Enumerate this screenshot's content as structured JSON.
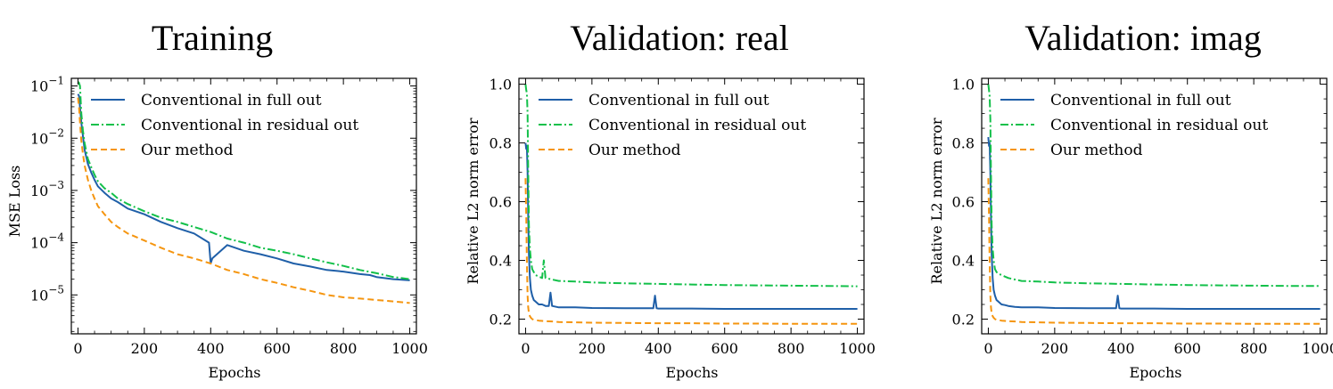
{
  "colors": {
    "full": "#1f5fa8",
    "residual": "#13c04a",
    "ours": "#f5950f"
  },
  "chart_data": [
    {
      "type": "line",
      "title": "Training",
      "xlabel": "Epochs",
      "ylabel": "MSE Loss",
      "yscale": "log",
      "xlim": [
        -20,
        1020
      ],
      "ylim": [
        1.8e-06,
        0.14
      ],
      "xticks": [
        0,
        200,
        400,
        600,
        800,
        1000
      ],
      "xtick_labels": [
        "0",
        "200",
        "400",
        "600",
        "800",
        "1000"
      ],
      "yticks": [
        0.1,
        0.01,
        0.001,
        0.0001,
        1e-05
      ],
      "ytick_labels": [
        {
          "base": "10",
          "exp": "−1"
        },
        {
          "base": "10",
          "exp": "−2"
        },
        {
          "base": "10",
          "exp": "−3"
        },
        {
          "base": "10",
          "exp": "−4"
        },
        {
          "base": "10",
          "exp": "−5"
        }
      ],
      "grid": false,
      "legend_position": "top-right",
      "series": [
        {
          "name": "Conventional in full out",
          "style": "solid",
          "x": [
            0,
            3,
            6,
            10,
            15,
            20,
            30,
            40,
            50,
            60,
            80,
            100,
            120,
            150,
            200,
            250,
            300,
            350,
            395,
            400,
            405,
            450,
            500,
            550,
            600,
            650,
            700,
            750,
            800,
            850,
            880,
            900,
            950,
            1000
          ],
          "y": [
            0.07,
            0.065,
            0.04,
            0.02,
            0.011,
            0.006,
            0.0032,
            0.0022,
            0.0016,
            0.0012,
            0.0009,
            0.0007,
            0.0006,
            0.00045,
            0.00035,
            0.00025,
            0.00019,
            0.00015,
            0.0001,
            4e-05,
            5e-05,
            9e-05,
            7e-05,
            6e-05,
            5e-05,
            4e-05,
            3.5e-05,
            3e-05,
            2.8e-05,
            2.5e-05,
            2.4e-05,
            2.2e-05,
            2e-05,
            1.9e-05
          ]
        },
        {
          "name": "Conventional in residual out",
          "style": "dashdot",
          "x": [
            0,
            3,
            6,
            10,
            15,
            20,
            30,
            40,
            50,
            60,
            80,
            100,
            120,
            150,
            200,
            250,
            300,
            350,
            400,
            450,
            500,
            550,
            600,
            650,
            700,
            750,
            800,
            850,
            900,
            950,
            1000
          ],
          "y": [
            0.12,
            0.115,
            0.1,
            0.03,
            0.014,
            0.008,
            0.004,
            0.0028,
            0.002,
            0.0015,
            0.0011,
            0.0009,
            0.0007,
            0.00055,
            0.0004,
            0.0003,
            0.00025,
            0.0002,
            0.00016,
            0.00012,
            0.0001,
            8e-05,
            7e-05,
            6e-05,
            5e-05,
            4.2e-05,
            3.6e-05,
            3e-05,
            2.6e-05,
            2.2e-05,
            2e-05
          ]
        },
        {
          "name": "Our method",
          "style": "dashed",
          "x": [
            0,
            3,
            6,
            10,
            15,
            20,
            30,
            40,
            50,
            60,
            80,
            100,
            120,
            150,
            200,
            250,
            300,
            350,
            400,
            450,
            500,
            550,
            600,
            650,
            700,
            750,
            800,
            850,
            900,
            950,
            1000
          ],
          "y": [
            0.06,
            0.04,
            0.02,
            0.009,
            0.005,
            0.003,
            0.0016,
            0.001,
            0.0007,
            0.0005,
            0.00035,
            0.00025,
            0.0002,
            0.00015,
            0.00011,
            8e-05,
            6e-05,
            5e-05,
            4e-05,
            3e-05,
            2.5e-05,
            2e-05,
            1.7e-05,
            1.4e-05,
            1.2e-05,
            1e-05,
            9e-06,
            8.5e-06,
            8e-06,
            7.5e-06,
            7e-06
          ]
        }
      ]
    },
    {
      "type": "line",
      "title": "Validation: real",
      "xlabel": "Epochs",
      "ylabel": "Relative L2 norm error",
      "yscale": "linear",
      "xlim": [
        -20,
        1020
      ],
      "ylim": [
        0.15,
        1.02
      ],
      "xticks": [
        0,
        200,
        400,
        600,
        800,
        1000
      ],
      "xtick_labels": [
        "0",
        "200",
        "400",
        "600",
        "800",
        "1000"
      ],
      "yticks": [
        0.2,
        0.4,
        0.6,
        0.8,
        1.0
      ],
      "ytick_labels": [
        "0.2",
        "0.4",
        "0.6",
        "0.8",
        "1.0"
      ],
      "grid": false,
      "legend_position": "top-right",
      "series": [
        {
          "name": "Conventional in full out",
          "style": "solid",
          "x": [
            0,
            2,
            4,
            6,
            8,
            10,
            13,
            16,
            20,
            25,
            30,
            40,
            50,
            60,
            70,
            75,
            80,
            100,
            150,
            200,
            300,
            385,
            390,
            395,
            400,
            500,
            600,
            700,
            800,
            900,
            1000
          ],
          "y": [
            0.8,
            0.78,
            0.79,
            0.7,
            0.55,
            0.42,
            0.34,
            0.3,
            0.28,
            0.265,
            0.26,
            0.25,
            0.25,
            0.245,
            0.245,
            0.29,
            0.245,
            0.24,
            0.24,
            0.238,
            0.237,
            0.237,
            0.28,
            0.237,
            0.236,
            0.236,
            0.235,
            0.235,
            0.235,
            0.235,
            0.235
          ]
        },
        {
          "name": "Conventional in residual out",
          "style": "dashdot",
          "x": [
            0,
            2,
            4,
            6,
            8,
            10,
            13,
            16,
            20,
            25,
            30,
            40,
            50,
            55,
            60,
            80,
            100,
            150,
            200,
            300,
            400,
            500,
            600,
            700,
            800,
            900,
            1000
          ],
          "y": [
            1.0,
            0.98,
            0.97,
            0.9,
            0.7,
            0.52,
            0.44,
            0.4,
            0.37,
            0.36,
            0.35,
            0.345,
            0.34,
            0.4,
            0.34,
            0.335,
            0.33,
            0.328,
            0.325,
            0.322,
            0.32,
            0.318,
            0.316,
            0.315,
            0.314,
            0.313,
            0.312
          ]
        },
        {
          "name": "Our method",
          "style": "dashed",
          "x": [
            0,
            2,
            4,
            6,
            8,
            10,
            13,
            16,
            20,
            25,
            30,
            40,
            50,
            60,
            80,
            100,
            150,
            200,
            300,
            400,
            500,
            600,
            700,
            800,
            900,
            1000
          ],
          "y": [
            0.68,
            0.55,
            0.4,
            0.28,
            0.24,
            0.22,
            0.21,
            0.205,
            0.2,
            0.198,
            0.197,
            0.195,
            0.194,
            0.193,
            0.192,
            0.19,
            0.189,
            0.188,
            0.187,
            0.186,
            0.186,
            0.185,
            0.185,
            0.184,
            0.184,
            0.184
          ]
        }
      ]
    },
    {
      "type": "line",
      "title": "Validation: imag",
      "xlabel": "Epochs",
      "ylabel": "Relative L2 norm error",
      "yscale": "linear",
      "xlim": [
        -20,
        1020
      ],
      "ylim": [
        0.15,
        1.02
      ],
      "xticks": [
        0,
        200,
        400,
        600,
        800,
        1000
      ],
      "xtick_labels": [
        "0",
        "200",
        "400",
        "600",
        "800",
        "1000"
      ],
      "yticks": [
        0.2,
        0.4,
        0.6,
        0.8,
        1.0
      ],
      "ytick_labels": [
        "0.2",
        "0.4",
        "0.6",
        "0.8",
        "1.0"
      ],
      "grid": false,
      "legend_position": "top-right",
      "series": [
        {
          "name": "Conventional in full out",
          "style": "solid",
          "x": [
            0,
            2,
            4,
            6,
            8,
            10,
            13,
            16,
            20,
            25,
            30,
            40,
            50,
            60,
            80,
            100,
            150,
            200,
            300,
            385,
            390,
            395,
            400,
            500,
            600,
            700,
            800,
            900,
            1000
          ],
          "y": [
            0.82,
            0.79,
            0.8,
            0.7,
            0.55,
            0.42,
            0.34,
            0.3,
            0.28,
            0.265,
            0.26,
            0.25,
            0.248,
            0.245,
            0.242,
            0.24,
            0.24,
            0.238,
            0.237,
            0.237,
            0.28,
            0.237,
            0.236,
            0.236,
            0.235,
            0.235,
            0.235,
            0.235,
            0.235
          ]
        },
        {
          "name": "Conventional in residual out",
          "style": "dashdot",
          "x": [
            0,
            2,
            4,
            6,
            8,
            10,
            13,
            16,
            20,
            25,
            30,
            40,
            50,
            60,
            80,
            100,
            150,
            200,
            300,
            400,
            500,
            600,
            700,
            800,
            900,
            1000
          ],
          "y": [
            1.0,
            0.98,
            0.96,
            0.88,
            0.7,
            0.52,
            0.44,
            0.4,
            0.37,
            0.36,
            0.355,
            0.35,
            0.345,
            0.34,
            0.335,
            0.33,
            0.328,
            0.325,
            0.322,
            0.32,
            0.318,
            0.316,
            0.315,
            0.314,
            0.313,
            0.313
          ]
        },
        {
          "name": "Our method",
          "style": "dashed",
          "x": [
            0,
            2,
            4,
            6,
            8,
            10,
            13,
            16,
            20,
            25,
            30,
            40,
            50,
            60,
            80,
            100,
            150,
            200,
            300,
            400,
            500,
            600,
            700,
            800,
            900,
            1000
          ],
          "y": [
            0.68,
            0.55,
            0.4,
            0.28,
            0.24,
            0.22,
            0.21,
            0.205,
            0.2,
            0.198,
            0.197,
            0.195,
            0.194,
            0.193,
            0.192,
            0.19,
            0.189,
            0.188,
            0.187,
            0.186,
            0.186,
            0.185,
            0.185,
            0.184,
            0.184,
            0.184
          ]
        }
      ]
    }
  ]
}
